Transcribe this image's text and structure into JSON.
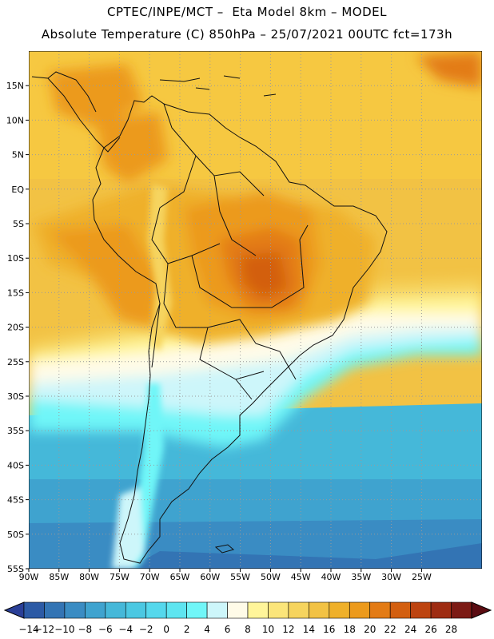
{
  "header": {
    "line1": "CPTEC/INPE/MCT –  Eta Model 8km – MODEL",
    "line2": "Absolute Temperature (C) 850hPa – 25/07/2021 00UTC fct=173h"
  },
  "map": {
    "lon_range": [
      -90,
      -15
    ],
    "lat_range": [
      -55,
      20
    ],
    "x_ticks": [
      {
        "value": -90,
        "label": "90W"
      },
      {
        "value": -85,
        "label": "85W"
      },
      {
        "value": -80,
        "label": "80W"
      },
      {
        "value": -75,
        "label": "75W"
      },
      {
        "value": -70,
        "label": "70W"
      },
      {
        "value": -65,
        "label": "65W"
      },
      {
        "value": -60,
        "label": "60W"
      },
      {
        "value": -55,
        "label": "55W"
      },
      {
        "value": -50,
        "label": "50W"
      },
      {
        "value": -45,
        "label": "45W"
      },
      {
        "value": -40,
        "label": "40W"
      },
      {
        "value": -35,
        "label": "35W"
      },
      {
        "value": -30,
        "label": "30W"
      },
      {
        "value": -25,
        "label": "25W"
      }
    ],
    "y_ticks": [
      {
        "value": 15,
        "label": "15N"
      },
      {
        "value": 10,
        "label": "10N"
      },
      {
        "value": 5,
        "label": "5N"
      },
      {
        "value": 0,
        "label": "EQ"
      },
      {
        "value": -5,
        "label": "5S"
      },
      {
        "value": -10,
        "label": "10S"
      },
      {
        "value": -15,
        "label": "15S"
      },
      {
        "value": -20,
        "label": "20S"
      },
      {
        "value": -25,
        "label": "25S"
      },
      {
        "value": -30,
        "label": "30S"
      },
      {
        "value": -35,
        "label": "35S"
      },
      {
        "value": -40,
        "label": "40S"
      },
      {
        "value": -45,
        "label": "45S"
      },
      {
        "value": -50,
        "label": "50S"
      },
      {
        "value": -55,
        "label": "55S"
      }
    ],
    "grid": true,
    "grid_color": "#9a9a9a"
  },
  "colorbar": {
    "labels": [
      "-14",
      "-12",
      "-10",
      "-8",
      "-6",
      "-4",
      "-2",
      "0",
      "2",
      "4",
      "6",
      "8",
      "10",
      "12",
      "14",
      "16",
      "18",
      "20",
      "22",
      "24",
      "26",
      "28"
    ],
    "colors": [
      "#2a3f97",
      "#2c5aa5",
      "#3374b4",
      "#3a8cc3",
      "#3fa3cf",
      "#45b8d9",
      "#4bc8e2",
      "#55d8ec",
      "#5ee5f0",
      "#70f6f8",
      "#cdf6fa",
      "#fffbe8",
      "#fff59a",
      "#fbe57a",
      "#f6d45e",
      "#f2c244",
      "#efb02a",
      "#ec9a1c",
      "#e37b15",
      "#d35f10",
      "#bd4410",
      "#9e2c12",
      "#7c1a14",
      "#5b0c12"
    ]
  }
}
